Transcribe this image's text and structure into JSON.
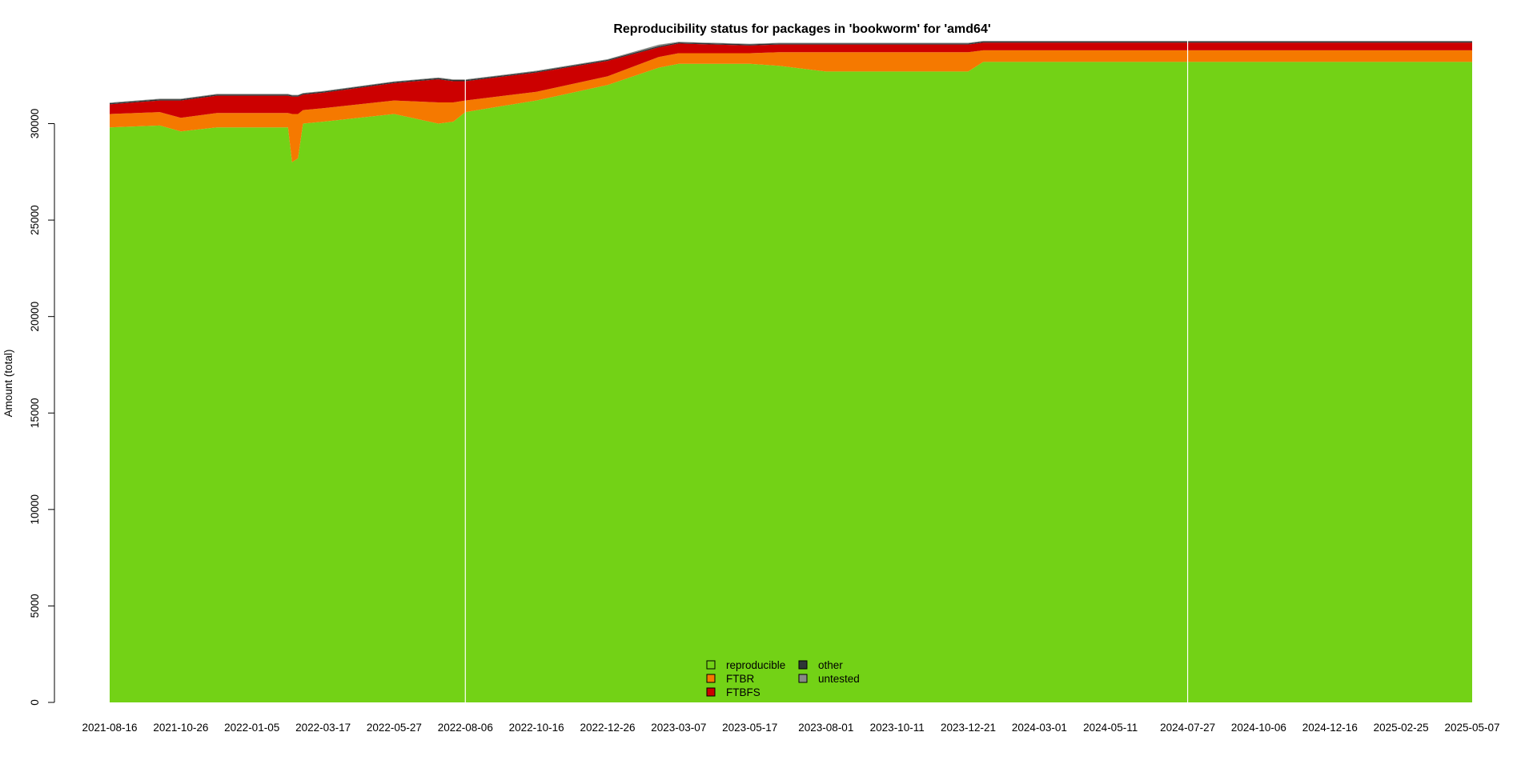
{
  "chart_data": {
    "type": "area",
    "stacked": true,
    "title": "Reproducibility status for packages in 'bookworm' for 'amd64'",
    "xlabel": "",
    "ylabel": "Amount (total)",
    "ylim": [
      0,
      34500
    ],
    "yticks": [
      0,
      5000,
      10000,
      15000,
      20000,
      25000,
      30000
    ],
    "xticks": [
      "2021-08-16",
      "2021-10-26",
      "2022-01-05",
      "2022-03-17",
      "2022-05-27",
      "2022-08-06",
      "2022-10-16",
      "2022-12-26",
      "2023-03-07",
      "2023-05-17",
      "2023-08-01",
      "2023-10-11",
      "2023-12-21",
      "2024-03-01",
      "2024-05-11",
      "2024-07-27",
      "2024-10-06",
      "2024-12-16",
      "2025-02-25",
      "2025-05-07"
    ],
    "grid": false,
    "legend_position": "bottom-center",
    "x": [
      "2021-08-16",
      "2021-10-05",
      "2021-10-26",
      "2021-12-01",
      "2022-01-05",
      "2022-01-20",
      "2022-02-10",
      "2022-02-14",
      "2022-02-20",
      "2022-02-25",
      "2022-03-17",
      "2022-05-27",
      "2022-07-10",
      "2022-07-25",
      "2022-08-06",
      "2022-10-16",
      "2022-12-26",
      "2023-02-15",
      "2023-03-07",
      "2023-05-17",
      "2023-06-15",
      "2023-08-01",
      "2023-10-11",
      "2023-12-21",
      "2024-01-05",
      "2024-03-01",
      "2024-05-11",
      "2024-07-27",
      "2024-10-06",
      "2024-12-16",
      "2025-02-25",
      "2025-05-07"
    ],
    "series": [
      {
        "name": "reproducible",
        "color": "#73d216",
        "values": [
          29800,
          29900,
          29600,
          29800,
          29800,
          29800,
          29800,
          28000,
          28200,
          30000,
          30100,
          30500,
          30000,
          30100,
          30600,
          31200,
          32000,
          32900,
          33100,
          33100,
          33000,
          32700,
          32700,
          32700,
          33200,
          33200,
          33200,
          33200,
          33200,
          33200,
          33200,
          33200
        ]
      },
      {
        "name": "FTBR",
        "color": "#f57900",
        "values": [
          700,
          700,
          700,
          750,
          750,
          750,
          750,
          2500,
          2300,
          700,
          700,
          700,
          1100,
          1000,
          600,
          450,
          450,
          550,
          550,
          550,
          700,
          1000,
          1000,
          1000,
          600,
          600,
          600,
          600,
          600,
          600,
          600,
          600
        ]
      },
      {
        "name": "FTBFS",
        "color": "#cc0000",
        "values": [
          500,
          600,
          900,
          900,
          900,
          900,
          900,
          900,
          900,
          800,
          800,
          900,
          1200,
          1100,
          1000,
          1000,
          800,
          500,
          500,
          400,
          400,
          400,
          400,
          400,
          400,
          400,
          400,
          400,
          400,
          400,
          400,
          400
        ]
      },
      {
        "name": "other",
        "color": "#2e3436",
        "values": [
          60,
          60,
          60,
          60,
          60,
          60,
          60,
          60,
          60,
          60,
          60,
          60,
          60,
          60,
          60,
          60,
          60,
          60,
          60,
          60,
          60,
          60,
          60,
          60,
          60,
          60,
          60,
          60,
          60,
          60,
          60,
          60
        ]
      },
      {
        "name": "untested",
        "color": "#888a85",
        "values": [
          30,
          30,
          30,
          30,
          30,
          30,
          30,
          30,
          30,
          30,
          30,
          30,
          30,
          30,
          30,
          30,
          30,
          80,
          30,
          30,
          30,
          30,
          30,
          30,
          30,
          30,
          30,
          30,
          30,
          30,
          30,
          30
        ]
      }
    ],
    "vertical_markers": [
      "2022-08-06",
      "2024-07-27"
    ]
  }
}
